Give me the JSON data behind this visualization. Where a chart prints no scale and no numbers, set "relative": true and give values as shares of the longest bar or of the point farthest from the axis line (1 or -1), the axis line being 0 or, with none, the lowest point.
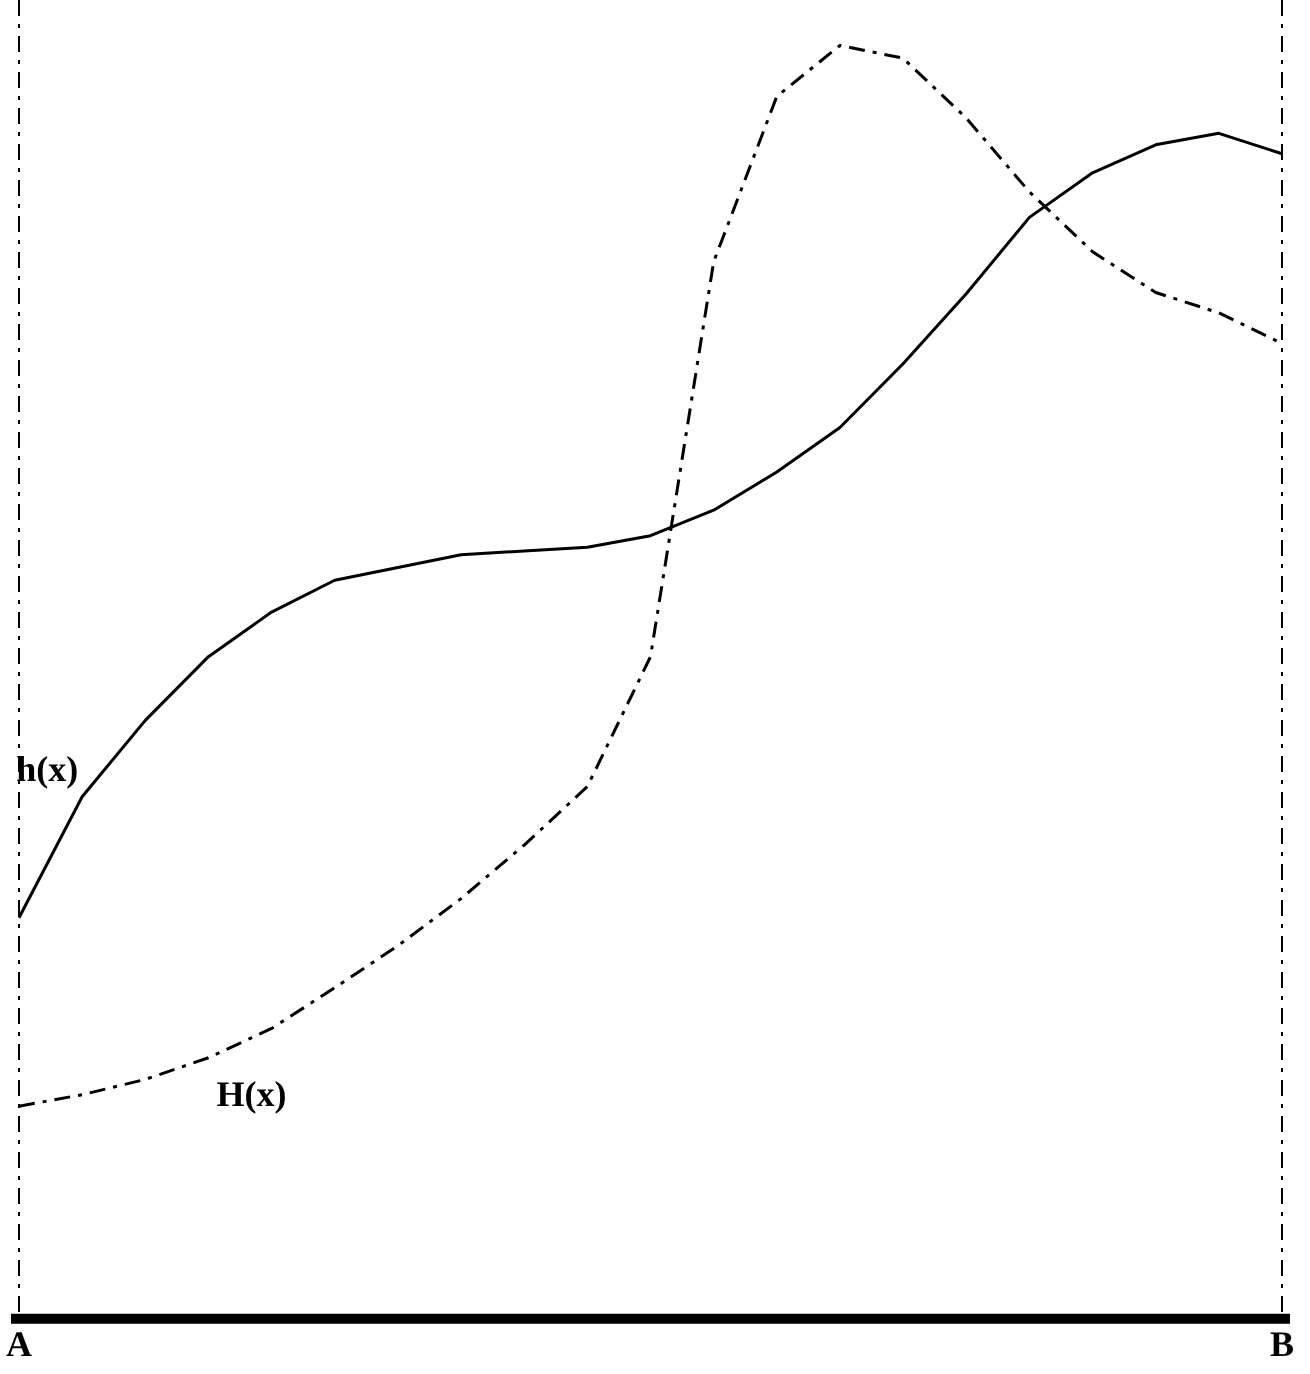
{
  "chart_data": {
    "type": "line",
    "relative": true,
    "marker": "none",
    "grid": false,
    "legend": false,
    "tick_labels": "x",
    "categories": [
      "A",
      null,
      null,
      null,
      null,
      null,
      null,
      null,
      null,
      null,
      null,
      null,
      null,
      null,
      null,
      null,
      null,
      null,
      null,
      null,
      "B"
    ],
    "ref_lines": [
      {
        "axis": "x",
        "value": "A",
        "line_style": "dashed",
        "color": "#000000"
      },
      {
        "axis": "x",
        "value": "B",
        "line_style": "dashed",
        "color": "#000000"
      }
    ],
    "series": [
      {
        "name": "h(x)",
        "color": "#000000",
        "line_style": "solid",
        "values": [
          0.315,
          0.41,
          0.47,
          0.52,
          0.555,
          0.58,
          0.59,
          0.6,
          0.603,
          0.606,
          0.615,
          0.635,
          0.665,
          0.7,
          0.75,
          0.805,
          0.865,
          0.9,
          0.922,
          0.931,
          0.915
        ]
      },
      {
        "name": "H(x)",
        "color": "#000000",
        "line_style": "dashed",
        "values": [
          0.167,
          0.176,
          0.188,
          0.205,
          0.228,
          0.26,
          0.293,
          0.33,
          0.372,
          0.418,
          0.52,
          0.83,
          0.96,
          1,
          0.99,
          0.943,
          0.885,
          0.838,
          0.806,
          0.79,
          0.766
        ]
      }
    ]
  }
}
